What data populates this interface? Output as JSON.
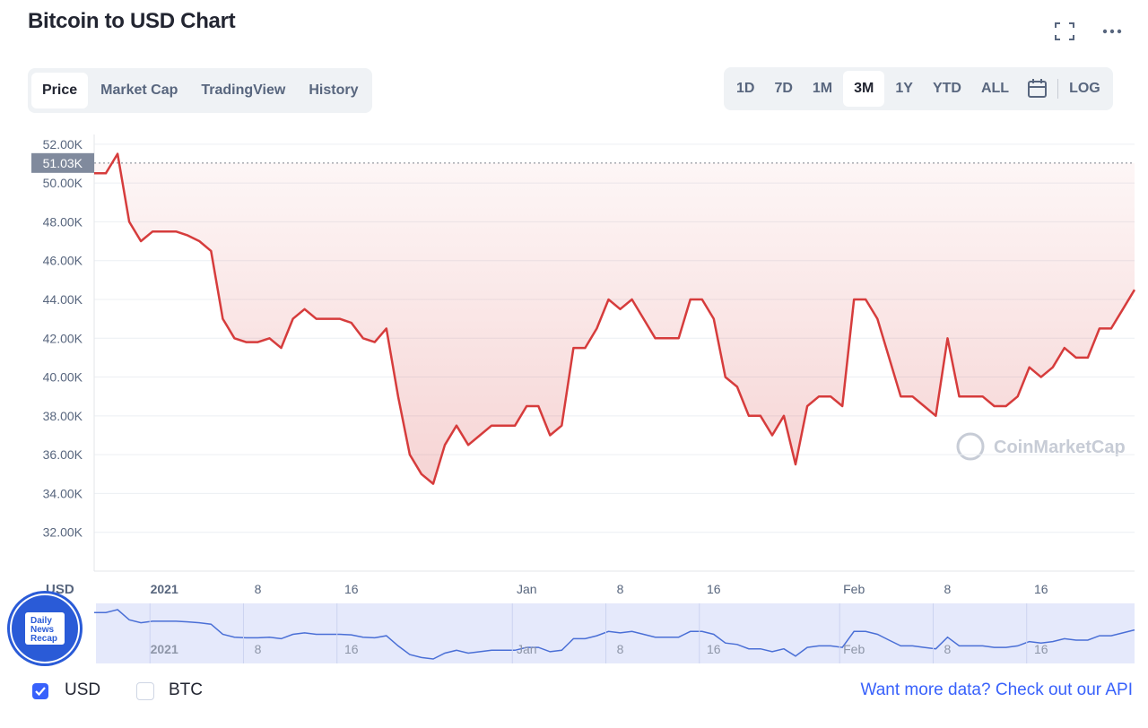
{
  "header": {
    "title": "Bitcoin to USD Chart"
  },
  "tabs": [
    "Price",
    "Market Cap",
    "TradingView",
    "History"
  ],
  "ranges": [
    "1D",
    "7D",
    "1M",
    "3M",
    "1Y",
    "YTD",
    "ALL"
  ],
  "log": "LOG",
  "badge": [
    "Daily",
    "News",
    "Recap"
  ],
  "watermark": "CoinMarketCap",
  "footer": {
    "checkboxes": [
      "USD",
      "BTC"
    ],
    "prompt": "Want more data?",
    "link": "Check out our API"
  },
  "chart_data": {
    "type": "line",
    "y_label": "USD",
    "color": "#d63c3c",
    "grid": true,
    "categories": [
      null,
      null,
      null,
      null,
      null,
      null,
      "2021",
      null,
      null,
      null,
      null,
      null,
      null,
      null,
      "8",
      null,
      null,
      null,
      null,
      null,
      null,
      null,
      "16",
      null,
      null,
      null,
      null,
      null,
      null,
      null,
      null,
      null,
      null,
      null,
      null,
      null,
      null,
      "Jan",
      null,
      null,
      null,
      null,
      null,
      null,
      null,
      "8",
      null,
      null,
      null,
      null,
      null,
      null,
      null,
      "16",
      null,
      null,
      null,
      null,
      null,
      null,
      null,
      null,
      null,
      null,
      null,
      "Feb",
      null,
      null,
      null,
      null,
      null,
      null,
      null,
      "8",
      null,
      null,
      null,
      null,
      null,
      null,
      null,
      "16",
      null,
      null,
      null,
      null,
      null,
      null,
      null,
      null
    ],
    "values": [
      50500,
      50500,
      51500,
      48000,
      47000,
      47500,
      47500,
      47500,
      47300,
      47000,
      46500,
      43000,
      42000,
      41800,
      41800,
      42000,
      41500,
      43000,
      43500,
      43000,
      43000,
      43000,
      42800,
      42000,
      41800,
      42500,
      39000,
      36000,
      35000,
      34500,
      36500,
      37500,
      36500,
      37000,
      37500,
      37500,
      37500,
      38500,
      38500,
      37000,
      37500,
      41500,
      41500,
      42500,
      44000,
      43500,
      44000,
      43000,
      42000,
      42000,
      42000,
      44000,
      44000,
      43000,
      40000,
      39500,
      38000,
      38000,
      37000,
      38000,
      35500,
      38500,
      39000,
      39000,
      38500,
      44000,
      44000,
      43000,
      41000,
      39000,
      39000,
      38500,
      38000,
      42000,
      39000,
      39000,
      39000,
      38500,
      38500,
      39000,
      40500,
      40000,
      40500,
      41500,
      41000,
      41000,
      42500,
      42500,
      43500,
      44500
    ],
    "ylim": [
      30000,
      52500
    ],
    "yticks": [
      {
        "value": 32000,
        "label": "32.00K"
      },
      {
        "value": 34000,
        "label": "34.00K"
      },
      {
        "value": 36000,
        "label": "36.00K"
      },
      {
        "value": 38000,
        "label": "38.00K"
      },
      {
        "value": 40000,
        "label": "40.00K"
      },
      {
        "value": 42000,
        "label": "42.00K"
      },
      {
        "value": 44000,
        "label": "44.00K"
      },
      {
        "value": 46000,
        "label": "46.00K"
      },
      {
        "value": 48000,
        "label": "48.00K"
      },
      {
        "value": 50000,
        "label": "50.00K"
      },
      {
        "value": 52000,
        "label": "52.00K"
      }
    ],
    "current": {
      "value": 51030,
      "label": "51.03K"
    },
    "navigator_color": "#4a6fd6"
  }
}
